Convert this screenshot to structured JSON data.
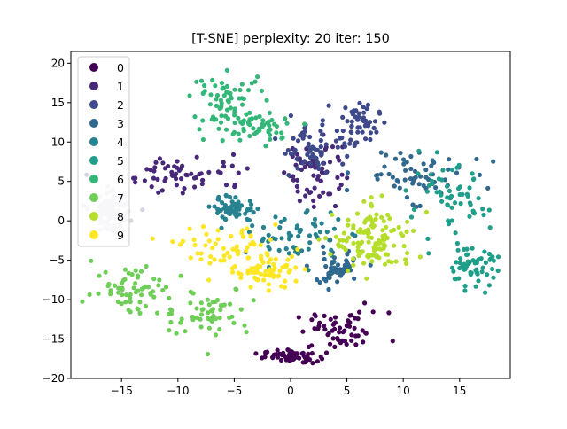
{
  "chart_data": {
    "type": "scatter",
    "title": "[T-SNE] perplexity: 20 iter: 150",
    "xlabel": "",
    "ylabel": "",
    "xlim": [
      -19.5,
      19.5
    ],
    "ylim": [
      -20,
      21.5
    ],
    "x_ticks": [
      -15,
      -10,
      -5,
      0,
      5,
      10,
      15
    ],
    "x_tick_labels": [
      "−15",
      "−10",
      "−5",
      "0",
      "5",
      "10",
      "15"
    ],
    "y_ticks": [
      -20,
      -15,
      -10,
      -5,
      0,
      5,
      10,
      15,
      20
    ],
    "y_tick_labels": [
      "−20",
      "−15",
      "−10",
      "−5",
      "0",
      "5",
      "10",
      "15",
      "20"
    ],
    "grid": false,
    "legend_position": "top-left",
    "colormap": "viridis",
    "point_counts_per_class": 120,
    "series": [
      {
        "name": "0",
        "color": "#440154",
        "clusters": [
          {
            "cx": 4.5,
            "cy": -14.0,
            "sx": 2.6,
            "sy": 1.5
          },
          {
            "cx": 0.0,
            "cy": -17.2,
            "sx": 1.5,
            "sy": 0.5
          }
        ]
      },
      {
        "name": "1",
        "color": "#482878",
        "clusters": [
          {
            "cx": -9.0,
            "cy": 6.0,
            "sx": 3.5,
            "sy": 1.5
          },
          {
            "cx": 2.0,
            "cy": 6.5,
            "sx": 1.6,
            "sy": 3.0
          }
        ]
      },
      {
        "name": "2",
        "color": "#3e4989",
        "clusters": [
          {
            "cx": 6.0,
            "cy": 12.0,
            "sx": 1.2,
            "sy": 2.0
          },
          {
            "cx": 1.5,
            "cy": 9.0,
            "sx": 1.5,
            "sy": 2.0
          }
        ]
      },
      {
        "name": "3",
        "color": "#31688e",
        "clusters": [
          {
            "cx": 11.0,
            "cy": 6.0,
            "sx": 3.0,
            "sy": 2.0
          },
          {
            "cx": 4.0,
            "cy": -6.0,
            "sx": 1.5,
            "sy": 1.5
          }
        ]
      },
      {
        "name": "4",
        "color": "#26828e",
        "clusters": [
          {
            "cx": 0.5,
            "cy": -2.0,
            "sx": 2.5,
            "sy": 2.0
          },
          {
            "cx": -5.0,
            "cy": 1.5,
            "sx": 1.2,
            "sy": 1.0
          }
        ]
      },
      {
        "name": "5",
        "color": "#1f9e89",
        "clusters": [
          {
            "cx": 14.0,
            "cy": 2.0,
            "sx": 2.2,
            "sy": 3.0
          },
          {
            "cx": 16.0,
            "cy": -6.0,
            "sx": 1.5,
            "sy": 1.5
          }
        ]
      },
      {
        "name": "6",
        "color": "#35b779",
        "clusters": [
          {
            "cx": -5.5,
            "cy": 15.5,
            "sx": 2.0,
            "sy": 2.0
          },
          {
            "cx": -3.0,
            "cy": 12.0,
            "sx": 2.5,
            "sy": 1.2
          }
        ]
      },
      {
        "name": "7",
        "color": "#6ece58",
        "clusters": [
          {
            "cx": -14.0,
            "cy": -8.5,
            "sx": 2.2,
            "sy": 2.0
          },
          {
            "cx": -7.5,
            "cy": -11.5,
            "sx": 2.5,
            "sy": 2.0
          }
        ]
      },
      {
        "name": "8",
        "color": "#b5de2b",
        "clusters": [
          {
            "cx": 7.5,
            "cy": -2.5,
            "sx": 2.3,
            "sy": 2.6
          }
        ]
      },
      {
        "name": "9",
        "color": "#fde725",
        "clusters": [
          {
            "cx": -5.5,
            "cy": -3.5,
            "sx": 2.8,
            "sy": 1.8
          },
          {
            "cx": -2.0,
            "cy": -6.5,
            "sx": 2.0,
            "sy": 1.2
          }
        ]
      },
      {
        "name": "",
        "color": "#d8d4e2",
        "clusters": [
          {
            "cx": -16.0,
            "cy": 1.0,
            "sx": 1.0,
            "sy": 1.5
          }
        ]
      }
    ]
  }
}
